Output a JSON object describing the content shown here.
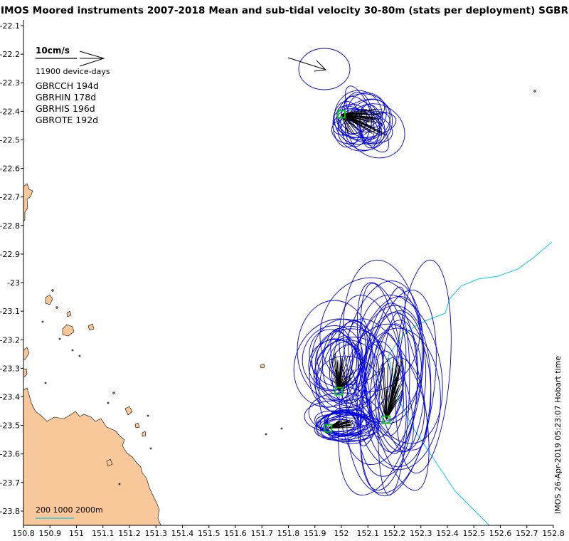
{
  "title": "IMOS Moored instruments 2007-2018 Mean and sub-tidal velocity 30-80m (stats per deployment) SGBR",
  "scale": {
    "vector_label": "10cm/s",
    "device_days": "11900 device-days"
  },
  "stations": [
    {
      "name": "GBRCCH",
      "days": "194d",
      "label": "GBRCCH 194d",
      "lon": 152.17,
      "lat": -23.48
    },
    {
      "name": "GBRHIN",
      "days": "178d",
      "label": "GBRHIN 178d",
      "lon": 151.99,
      "lat": -23.38
    },
    {
      "name": "GBRHIS",
      "days": "196d",
      "label": "GBRHIS 196d",
      "lon": 151.95,
      "lat": -23.51
    },
    {
      "name": "GBROTE",
      "days": "192d",
      "label": "GBROTE 192d",
      "lon": 152.0,
      "lat": -22.41
    }
  ],
  "depth_legend": "200 1000 2000m",
  "timestamp": "IMOS 26-Apr-2019 05:23:07 Hobart time",
  "axes": {
    "x_ticks": [
      "150.8",
      "150.9",
      "151",
      "151.1",
      "151.2",
      "151.3",
      "151.4",
      "151.5",
      "151.6",
      "151.7",
      "151.8",
      "151.9",
      "152",
      "152.1",
      "152.2",
      "152.3",
      "152.4",
      "152.5",
      "152.6",
      "152.7",
      "152.8"
    ],
    "y_ticks": [
      "-22.1",
      "-22.2",
      "-22.3",
      "-22.4",
      "-22.5",
      "-22.6",
      "-22.7",
      "-22.8",
      "-22.9",
      "-23",
      "-23.1",
      "-23.2",
      "-23.3",
      "-23.4",
      "-23.5",
      "-23.6",
      "-23.7",
      "-23.8"
    ],
    "lon_range": [
      150.8,
      152.8
    ],
    "lat_range": [
      -23.85,
      -22.08
    ]
  },
  "colors": {
    "land": "#f9c89a",
    "ellipse": "#0000dd",
    "vector": "#000000",
    "station_marker": "#00cc00",
    "isobath": "#00ccee"
  }
}
